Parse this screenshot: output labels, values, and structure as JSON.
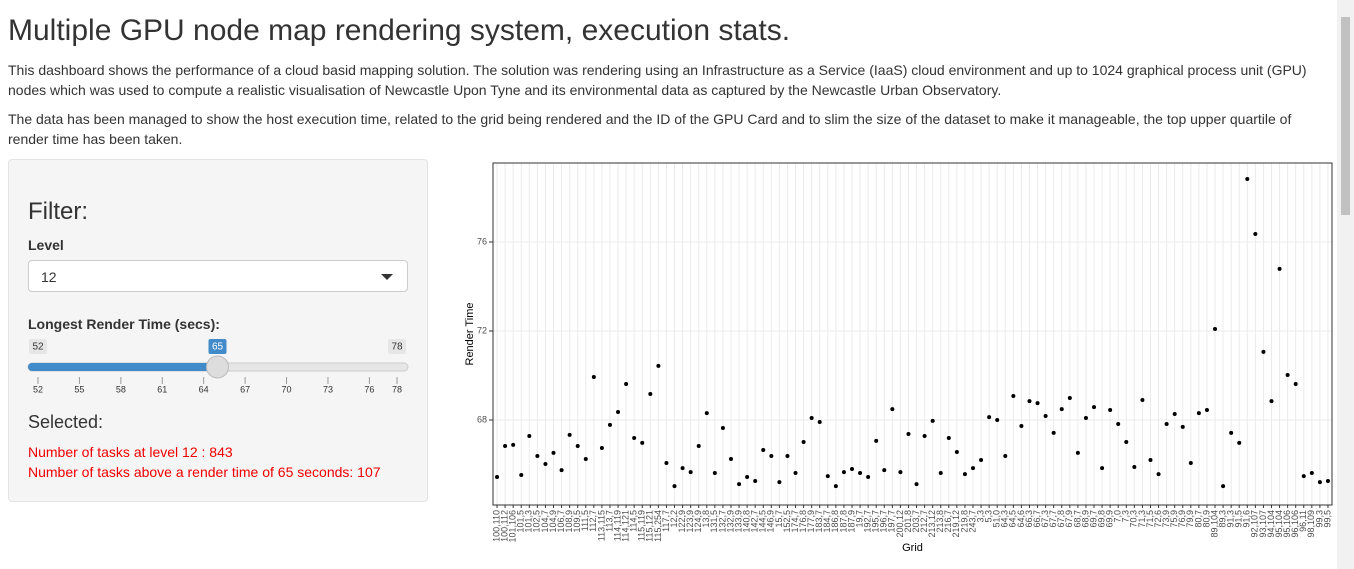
{
  "header": {
    "title": "Multiple GPU node map rendering system, execution stats.",
    "paragraphs": [
      "This dashboard shows the performance of a cloud basid mapping solution. The solution was rendering using an Infrastructure as a Service (IaaS) cloud environment and up to 1024 graphical process unit (GPU) nodes which was used to compute a realistic visualisation of Newcastle Upon Tyne and its environmental data as captured by the Newcastle Urban Observatory.",
      "The data has been managed to show the host execution time, related to the grid being rendered and the ID of the GPU Card and to slim the size of the dataset to make it manageable, the top upper quartile of render time has been taken."
    ]
  },
  "sidebar": {
    "heading": "Filter:",
    "level_label": "Level",
    "level_value": "12",
    "slider_label": "Longest Render Time (secs):",
    "slider_min": 52,
    "slider_max": 78,
    "slider_value": 65,
    "slider_ticks": [
      52,
      55,
      58,
      61,
      64,
      67,
      70,
      73,
      76,
      78
    ],
    "selected_heading": "Selected:",
    "selected_lines": [
      "Number of tasks at level 12 : 843",
      "Number of tasks above a render time of 65 seconds: 107"
    ]
  },
  "chart_data": {
    "type": "scatter",
    "xlabel": "Grid",
    "ylabel": "Render Time",
    "color": "#000000",
    "grid": true,
    "ylim": [
      64.18,
      79.55
    ],
    "yticks": [
      68,
      72,
      76
    ],
    "categories": [
      "100,110",
      "100,112",
      "101,106",
      "101,5",
      "101,3",
      "102,5",
      "104,7",
      "104,9",
      "106,7",
      "108,9",
      "109,5",
      "111,5",
      "112,7",
      "113,115",
      "113,7",
      "114,119",
      "114,121",
      "114,5",
      "115,119",
      "115,121",
      "115,254",
      "117,7",
      "12,2",
      "122,9",
      "123,9",
      "124,9",
      "13,8",
      "131,5",
      "132,7",
      "132,9",
      "133,9",
      "140,8",
      "142,7",
      "144,5",
      "146,9",
      "15,7",
      "152,5",
      "174,7",
      "176,8",
      "177,9",
      "183,7",
      "184,7",
      "186,8",
      "187,8",
      "187,9",
      "19,7",
      "192,7",
      "195,7",
      "196,7",
      "197,7",
      "200,12",
      "201,8",
      "203,7",
      "212,7",
      "213,12",
      "213,8",
      "216,7",
      "219,12",
      "219,8",
      "243,7",
      "3,3",
      "5,3",
      "51,0",
      "64,3",
      "64,5",
      "64,6",
      "66,3",
      "66,7",
      "67,3",
      "67,7",
      "67,8",
      "67,9",
      "68,7",
      "68,9",
      "69,7",
      "69,8",
      "69,9",
      "7,0",
      "7,3",
      "70,3",
      "71,3",
      "71,5",
      "72,6",
      "73,9",
      "75,9",
      "76,9",
      "79,9",
      "80,7",
      "80,9",
      "89,104",
      "89,3",
      "91,3",
      "91,5",
      "91,6",
      "92,107",
      "93,107",
      "94,104",
      "95,104",
      "95,106",
      "96,106",
      "96,11",
      "98,109",
      "99,3",
      "99,5"
    ],
    "values": [
      65.44,
      66.83,
      66.88,
      65.53,
      67.28,
      66.38,
      66.02,
      66.52,
      65.75,
      67.33,
      66.83,
      66.25,
      69.93,
      66.74,
      67.78,
      68.36,
      69.62,
      67.19,
      66.97,
      69.17,
      70.43,
      66.07,
      65.03,
      65.84,
      65.66,
      66.83,
      68.31,
      65.62,
      67.64,
      66.25,
      65.12,
      65.44,
      65.26,
      66.65,
      66.38,
      65.21,
      66.38,
      65.62,
      67.01,
      68.09,
      67.91,
      65.48,
      65.03,
      65.66,
      65.8,
      65.62,
      65.44,
      67.06,
      65.75,
      68.49,
      65.66,
      67.37,
      65.12,
      67.28,
      67.96,
      65.62,
      67.19,
      66.56,
      65.57,
      65.84,
      66.2,
      68.13,
      68.0,
      66.38,
      69.08,
      67.73,
      68.85,
      68.76,
      68.18,
      67.42,
      68.49,
      68.99,
      66.52,
      68.09,
      68.58,
      65.84,
      68.45,
      67.82,
      67.01,
      65.89,
      68.9,
      66.2,
      65.57,
      67.82,
      68.27,
      67.69,
      66.07,
      68.31,
      68.45,
      72.09,
      65.03,
      67.42,
      66.97,
      78.83,
      76.36,
      71.06,
      68.85,
      74.79,
      70.02,
      69.62,
      65.48,
      65.62,
      65.21,
      65.26
    ]
  }
}
